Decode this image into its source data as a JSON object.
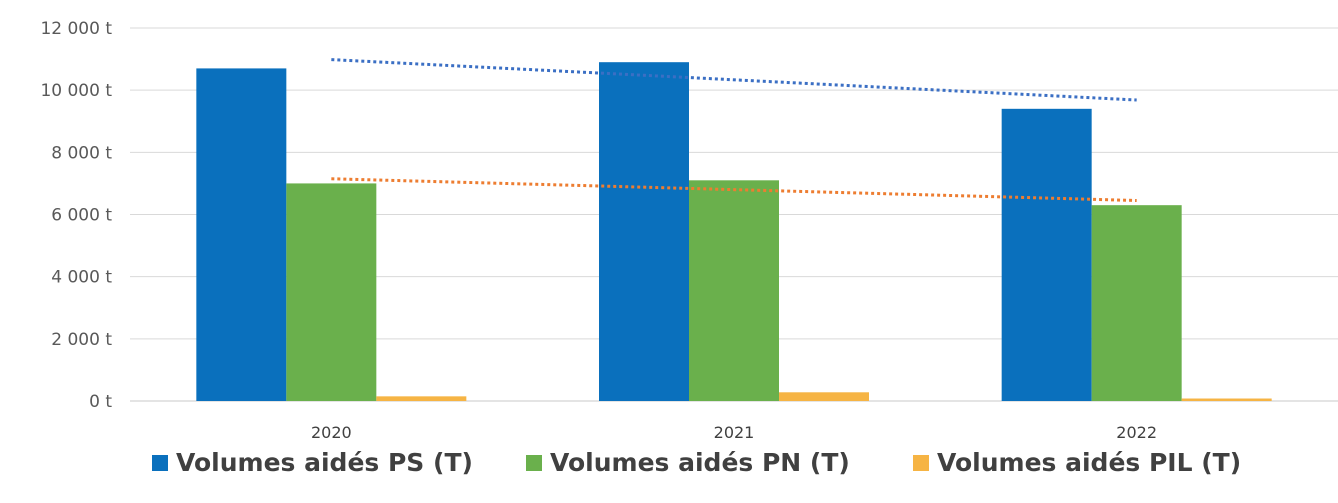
{
  "chart_data": {
    "type": "bar",
    "categories": [
      "2020",
      "2021",
      "2022"
    ],
    "series": [
      {
        "name": "Volumes aidés PS (T)",
        "values": [
          10700,
          10900,
          9400
        ],
        "color": "#0a70bd"
      },
      {
        "name": "Volumes aidés PN (T)",
        "values": [
          7000,
          7100,
          6300
        ],
        "color": "#6ab04c"
      },
      {
        "name": "Volumes aidés PIL (T)",
        "values": [
          150,
          280,
          80
        ],
        "color": "#f6b444"
      }
    ],
    "trendlines": [
      {
        "series": "Volumes aidés PS (T)",
        "style": "dotted",
        "color": "#3b6fc4"
      },
      {
        "series": "Volumes aidés PN (T)",
        "style": "dotted",
        "color": "#ed7d31"
      }
    ],
    "yticks": [
      {
        "value": 0,
        "label": "0 t"
      },
      {
        "value": 2000,
        "label": "2 000 t"
      },
      {
        "value": 4000,
        "label": "4 000 t"
      },
      {
        "value": 6000,
        "label": "6 000 t"
      },
      {
        "value": 8000,
        "label": "8 000 t"
      },
      {
        "value": 10000,
        "label": "10 000 t"
      },
      {
        "value": 12000,
        "label": "12 000 t"
      }
    ],
    "ylim": [
      0,
      12000
    ],
    "grid": true,
    "legend_position": "bottom",
    "title": "",
    "xlabel": "",
    "ylabel": ""
  }
}
